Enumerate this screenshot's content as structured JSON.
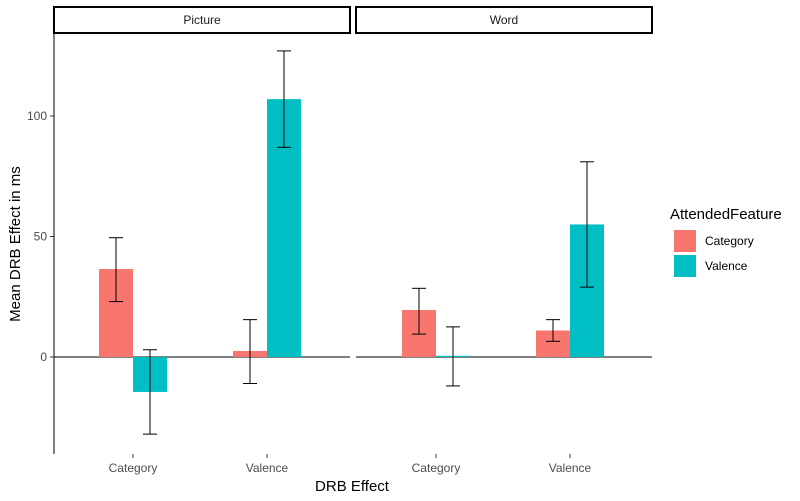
{
  "chart_data": {
    "type": "bar",
    "ylabel": "Mean DRB Effect in ms",
    "xlabel": "DRB Effect",
    "ylim": [
      -40,
      128
    ],
    "yticks": [
      0,
      50,
      100
    ],
    "legend": {
      "title": "AttendedFeature",
      "position": "right",
      "entries": [
        {
          "name": "Category",
          "color": "#F8766D"
        },
        {
          "name": "Valence",
          "color": "#00BFC4"
        }
      ]
    },
    "categories": [
      "Category",
      "Valence"
    ],
    "panels": [
      {
        "title": "Picture",
        "series": [
          {
            "name": "Category",
            "values": [
              36.5,
              2.5
            ],
            "err_low": [
              23,
              -11
            ],
            "err_high": [
              49.5,
              15.5
            ]
          },
          {
            "name": "Valence",
            "values": [
              -14.5,
              107
            ],
            "err_low": [
              -32,
              87
            ],
            "err_high": [
              3,
              127
            ]
          }
        ]
      },
      {
        "title": "Word",
        "series": [
          {
            "name": "Category",
            "values": [
              19.5,
              11
            ],
            "err_low": [
              9.5,
              6.5
            ],
            "err_high": [
              28.5,
              15.5
            ]
          },
          {
            "name": "Valence",
            "values": [
              0.5,
              55
            ],
            "err_low": [
              -12,
              29
            ],
            "err_high": [
              12.5,
              81
            ]
          }
        ]
      }
    ]
  }
}
